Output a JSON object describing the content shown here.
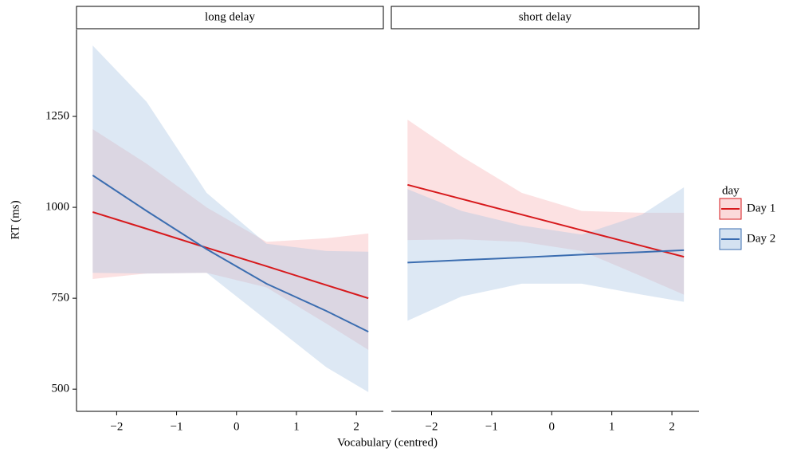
{
  "chart_data": {
    "type": "line",
    "ylabel": "RT (ms)",
    "xlabel": "Vocabulary (centred)",
    "legend_title": "day",
    "ylim": [
      439,
      1489
    ],
    "yticks": [
      500,
      750,
      1000,
      1250
    ],
    "xlim": [
      -2.67,
      2.45
    ],
    "xticks": [
      {
        "value": -2,
        "label": "−2"
      },
      {
        "value": -1,
        "label": "−1"
      },
      0,
      1,
      2
    ],
    "x": [
      -2.4,
      -1.5,
      -0.5,
      0.5,
      1.5,
      2.2
    ],
    "series": [
      {
        "name": "Day 1",
        "color": "#d7191c",
        "fill": "#f8b4b6"
      },
      {
        "name": "Day 2",
        "color": "#3b6db0",
        "fill": "#a9c6e4"
      }
    ],
    "panels": [
      {
        "title": "long delay",
        "series": [
          {
            "values": [
              987,
              941,
              889,
              838,
              786,
              750
            ],
            "upper": [
              1215,
              1120,
              1000,
              905,
              915,
              928
            ],
            "lower": [
              803,
              818,
              820,
              780,
              680,
              608
            ]
          },
          {
            "values": [
              1088,
              990,
              885,
              790,
              715,
              658
            ],
            "upper": [
              1445,
              1290,
              1040,
              900,
              880,
              878
            ],
            "lower": [
              820,
              818,
              820,
              690,
              560,
              492
            ]
          }
        ]
      },
      {
        "title": "short delay",
        "series": [
          {
            "values": [
              1062,
              1023,
              980,
              937,
              894,
              864
            ],
            "upper": [
              1241,
              1140,
              1040,
              990,
              985,
              985
            ],
            "lower": [
              910,
              912,
              905,
              880,
              810,
              760
            ]
          },
          {
            "values": [
              848,
              855,
              862,
              870,
              877,
              882
            ],
            "upper": [
              1050,
              990,
              950,
              925,
              980,
              1055
            ],
            "lower": [
              688,
              755,
              790,
              790,
              760,
              740
            ]
          }
        ]
      }
    ]
  }
}
